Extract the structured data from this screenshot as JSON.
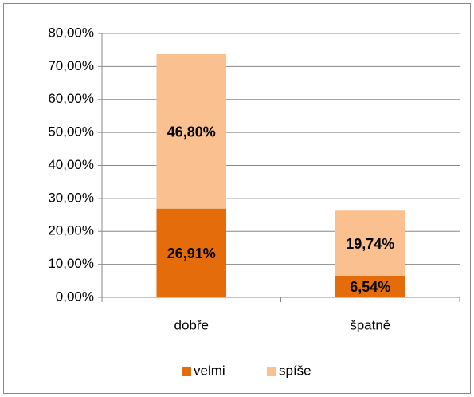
{
  "chart_data": {
    "type": "stacked_bar",
    "categories": [
      "dobře",
      "špatně"
    ],
    "series": [
      {
        "name": "velmi",
        "color": "#e46c0a",
        "values": [
          26.91,
          6.54
        ],
        "value_labels": [
          "26,91%",
          "6,54%"
        ]
      },
      {
        "name": "spíše",
        "color": "#fac090",
        "values": [
          46.8,
          19.74
        ],
        "value_labels": [
          "46,80%",
          "19,74%"
        ]
      }
    ],
    "ylim": [
      0,
      80
    ],
    "yticks": [
      {
        "value": 0,
        "label": "0,00%"
      },
      {
        "value": 10,
        "label": "10,00%"
      },
      {
        "value": 20,
        "label": "20,00%"
      },
      {
        "value": 30,
        "label": "30,00%"
      },
      {
        "value": 40,
        "label": "40,00%"
      },
      {
        "value": 50,
        "label": "50,00%"
      },
      {
        "value": 60,
        "label": "60,00%"
      },
      {
        "value": 70,
        "label": "70,00%"
      },
      {
        "value": 80,
        "label": "80,00%"
      }
    ],
    "grid": true,
    "legend": "bottom"
  }
}
